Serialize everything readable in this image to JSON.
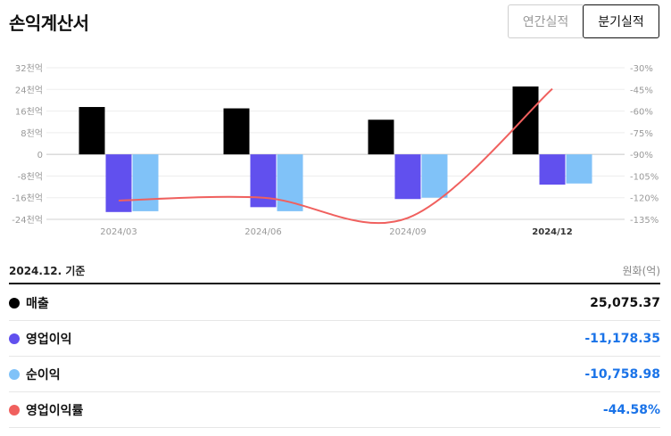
{
  "header": {
    "title": "손익계산서",
    "annual_label": "연간실적",
    "quarter_label": "분기실적"
  },
  "colors": {
    "revenue": "#000000",
    "operating_income": "#6150ee",
    "net_income": "#80c2f8",
    "operating_margin": "#f0605e",
    "negative_value": "#1a73e8"
  },
  "chart_data": {
    "type": "bar",
    "categories": [
      "2024/03",
      "2024/06",
      "2024/09",
      "2024/12"
    ],
    "series": [
      {
        "name": "매출",
        "type": "bar",
        "axis": "left",
        "values": [
          17.5,
          17.0,
          12.8,
          25.08
        ]
      },
      {
        "name": "영업이익",
        "type": "bar",
        "axis": "left",
        "values": [
          -21.3,
          -19.5,
          -16.5,
          -11.18
        ]
      },
      {
        "name": "순이익",
        "type": "bar",
        "axis": "left",
        "values": [
          -21.0,
          -21.0,
          -16.0,
          -10.76
        ]
      },
      {
        "name": "영업이익률",
        "type": "line",
        "axis": "right",
        "values": [
          -122,
          -120,
          -134,
          -44.58
        ]
      }
    ],
    "y_left": {
      "ticks": [
        32,
        24,
        16,
        8,
        0,
        -8,
        -16,
        -24
      ],
      "tick_labels": [
        "32천억",
        "24천억",
        "16천억",
        "8천억",
        "0",
        "-8천억",
        "-16천억",
        "-24천억"
      ],
      "ylim": [
        -24,
        32
      ]
    },
    "y_right": {
      "ticks": [
        -30,
        -45,
        -60,
        -75,
        -90,
        -105,
        -120,
        -135
      ],
      "tick_labels": [
        "-30%",
        "-45%",
        "-60%",
        "-75%",
        "-90%",
        "-105%",
        "-120%",
        "-135%"
      ],
      "ylim": [
        -135,
        -30
      ]
    },
    "highlight_category": "2024/12",
    "grid": true
  },
  "summary": {
    "basis": "2024.12. 기준",
    "unit": "원화(억)",
    "rows": [
      {
        "label": "매출",
        "value": "25,075.37",
        "negative": false,
        "color_key": "revenue"
      },
      {
        "label": "영업이익",
        "value": "-11,178.35",
        "negative": true,
        "color_key": "operating_income"
      },
      {
        "label": "순이익",
        "value": "-10,758.98",
        "negative": true,
        "color_key": "net_income"
      },
      {
        "label": "영업이익률",
        "value": "-44.58%",
        "negative": true,
        "color_key": "operating_margin"
      }
    ]
  }
}
